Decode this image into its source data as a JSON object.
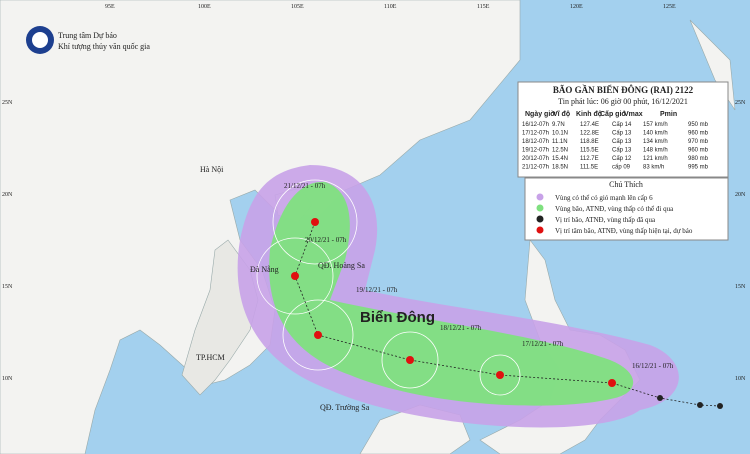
{
  "header": {
    "agency_line1": "Trung tâm Dự báo",
    "agency_line2": "Khí tượng thủy văn quốc gia"
  },
  "bulletin": {
    "title": "BÃO GẦN BIỂN ĐÔNG (RAI) 2122",
    "issued": "Tin phát lúc: 06 giờ 00 phút, 16/12/2021",
    "columns": [
      "Ngày giờ",
      "Vĩ độ",
      "Kinh độ",
      "Cấp gió",
      "Vmax",
      "Pmin"
    ],
    "rows": [
      [
        "16/12-07h",
        "9.7N",
        "127.4E",
        "Cấp 14",
        "157 km/h",
        "950 mb"
      ],
      [
        "17/12-07h",
        "10.1N",
        "122.8E",
        "Cấp 13",
        "140 km/h",
        "960 mb"
      ],
      [
        "18/12-07h",
        "11.1N",
        "118.8E",
        "Cấp 13",
        "134 km/h",
        "970 mb"
      ],
      [
        "19/12-07h",
        "12.5N",
        "115.5E",
        "Cấp 13",
        "148 km/h",
        "960 mb"
      ],
      [
        "20/12-07h",
        "15.4N",
        "112.7E",
        "Cấp 12",
        "121 km/h",
        "980 mb"
      ],
      [
        "21/12-07h",
        "18.5N",
        "111.5E",
        "cấp 09",
        "83 km/h",
        "995 mb"
      ]
    ]
  },
  "legend": {
    "title": "Chú Thích",
    "items": [
      "Vùng có thể có gió mạnh lên cấp 6",
      "Vùng bão, ATNĐ, vùng thấp có thể đi qua",
      "Vị trí bão, ATNĐ, vùng thấp đã qua",
      "Vị trí tâm bão, ATNĐ, vùng thấp hiện tại, dự báo"
    ]
  },
  "places": [
    "Hà Nội",
    "Đà Nẵng",
    "TP.HCM",
    "QĐ. Hoàng Sa",
    "QĐ. Trường Sa",
    "Biển Đông"
  ],
  "track_labels": [
    "16/12/21 - 07h",
    "17/12/21 - 07h",
    "18/12/21 - 07h",
    "19/12/21 - 07h",
    "20/12/21 - 07h",
    "21/12/21 - 07h"
  ],
  "lon_labels": [
    "95E",
    "100E",
    "105E",
    "110E",
    "115E",
    "120E",
    "125E"
  ],
  "lat_labels": [
    "25N",
    "20N",
    "15N",
    "10N"
  ]
}
